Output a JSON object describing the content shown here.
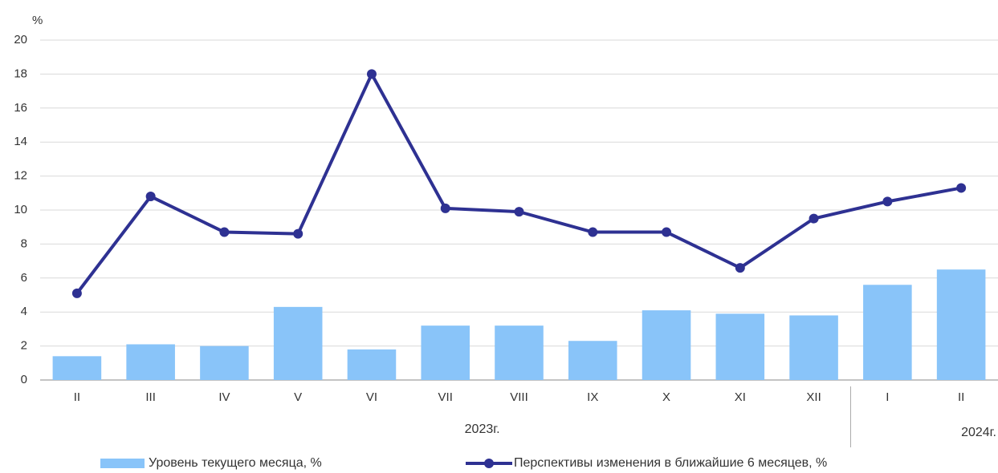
{
  "chart_data": {
    "type": "bar",
    "y_label": "%",
    "categories": [
      "II",
      "III",
      "IV",
      "V",
      "VI",
      "VII",
      "VIII",
      "IX",
      "X",
      "XI",
      "XII",
      "I",
      "II"
    ],
    "year_labels": [
      "2023г.",
      "2024г."
    ],
    "series": [
      {
        "name": "Уровень текущего месяца, %",
        "type": "bar",
        "color": "#89c4f9",
        "values": [
          1.4,
          2.1,
          2.0,
          4.3,
          1.8,
          3.2,
          3.2,
          2.3,
          4.1,
          3.9,
          3.8,
          5.6,
          6.5
        ]
      },
      {
        "name": "Перспективы изменения в ближайшие 6 месяцев, %",
        "type": "line",
        "color": "#2e3192",
        "values": [
          5.1,
          10.8,
          8.7,
          8.6,
          18.0,
          10.1,
          9.9,
          8.7,
          8.7,
          6.6,
          9.5,
          10.5,
          11.3
        ]
      }
    ],
    "ylim": [
      0,
      20
    ],
    "yticks": [
      0,
      2,
      4,
      6,
      8,
      10,
      12,
      14,
      16,
      18,
      20
    ],
    "grid": true
  }
}
